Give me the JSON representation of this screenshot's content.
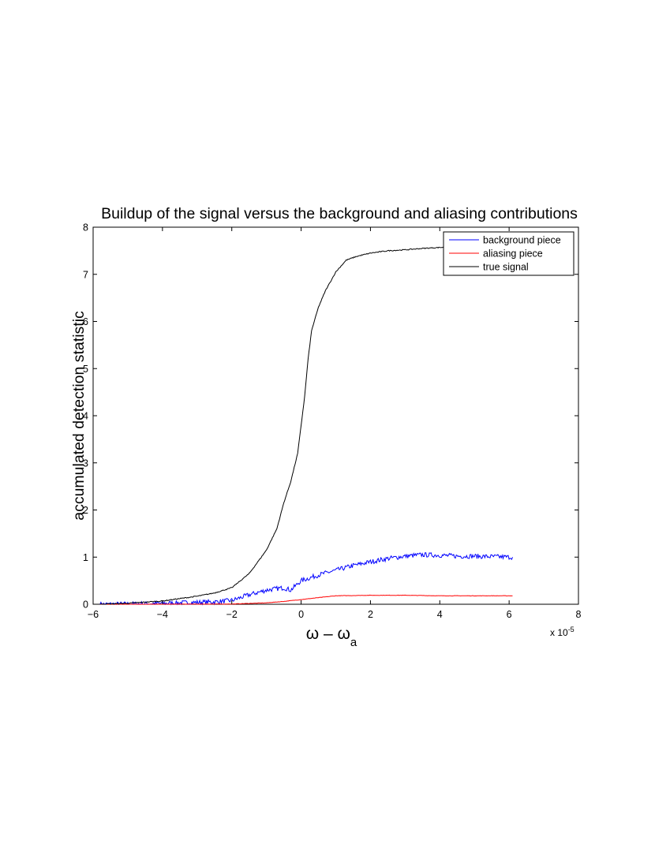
{
  "chart_data": {
    "type": "line",
    "title": "Buildup of the signal versus the background and aliasing contributions",
    "xlabel_main": "ω – ω",
    "xlabel_sub": "a",
    "ylabel": "accumulated detection statistic",
    "x_exponent_prefix": "x 10",
    "x_exponent_power": "-5",
    "xlim": [
      -6,
      8
    ],
    "ylim": [
      0,
      8
    ],
    "x_ticks": [
      -6,
      -4,
      -2,
      0,
      2,
      4,
      6,
      8
    ],
    "y_ticks": [
      0,
      1,
      2,
      3,
      4,
      5,
      6,
      7,
      8
    ],
    "x_tick_labels": [
      "−6",
      "−4",
      "−2",
      "0",
      "2",
      "4",
      "6",
      "8"
    ],
    "y_tick_labels": [
      "0",
      "1",
      "2",
      "3",
      "4",
      "5",
      "6",
      "7",
      "8"
    ],
    "grid": false,
    "legend_position": "top-right",
    "x_unit_scale": "1e-5",
    "series": [
      {
        "name": "background piece",
        "color": "#0000ff",
        "noise": 0.05,
        "x": [
          -5.8,
          -5,
          -4,
          -3,
          -2.5,
          -2,
          -1.5,
          -1,
          -0.5,
          -0.3,
          0,
          0.5,
          1,
          1.5,
          2,
          2.5,
          3,
          3.5,
          4,
          4.5,
          5,
          5.5,
          6.1
        ],
        "y": [
          0,
          0.005,
          0.02,
          0.04,
          0.05,
          0.08,
          0.2,
          0.3,
          0.35,
          0.3,
          0.5,
          0.62,
          0.72,
          0.82,
          0.9,
          0.97,
          1.02,
          1.05,
          1.04,
          1.02,
          1.02,
          1.01,
          1.0
        ]
      },
      {
        "name": "aliasing piece",
        "color": "#ff0000",
        "noise": 0.004,
        "x": [
          -5.8,
          -4,
          -2,
          -1,
          -0.5,
          0,
          0.5,
          1,
          2,
          3,
          4,
          5,
          6.1
        ],
        "y": [
          0,
          0,
          0.005,
          0.03,
          0.06,
          0.1,
          0.14,
          0.18,
          0.19,
          0.19,
          0.18,
          0.18,
          0.18
        ]
      },
      {
        "name": "true signal",
        "color": "#000000",
        "noise": 0.01,
        "x": [
          -5.8,
          -5,
          -4,
          -3,
          -2.5,
          -2,
          -1.5,
          -1,
          -0.7,
          -0.5,
          -0.3,
          -0.1,
          0,
          0.1,
          0.2,
          0.3,
          0.5,
          0.7,
          1,
          1.3,
          1.6,
          2,
          2.5,
          3,
          3.5,
          4,
          4.5,
          5,
          5.5,
          6.1
        ],
        "y": [
          0,
          0.02,
          0.07,
          0.17,
          0.24,
          0.35,
          0.65,
          1.15,
          1.6,
          2.15,
          2.6,
          3.2,
          3.8,
          4.4,
          5.2,
          5.8,
          6.3,
          6.65,
          7.05,
          7.3,
          7.38,
          7.45,
          7.5,
          7.52,
          7.55,
          7.57,
          7.58,
          7.58,
          7.59,
          7.59
        ]
      }
    ]
  }
}
